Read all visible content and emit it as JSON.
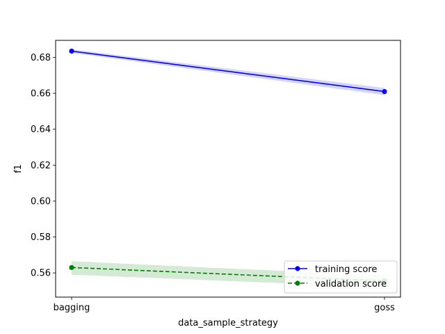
{
  "chart_data": {
    "type": "line",
    "categories": [
      "bagging",
      "goss"
    ],
    "xlabel": "data_sample_strategy",
    "ylabel": "f1",
    "ylim": [
      0.5465,
      0.6895
    ],
    "yticks": [
      0.56,
      0.58,
      0.6,
      0.62,
      0.64,
      0.66,
      0.68
    ],
    "ytick_labels": [
      "0.56",
      "0.58",
      "0.60",
      "0.62",
      "0.64",
      "0.66",
      "0.68"
    ],
    "grid": false,
    "legend_position": "lower-right",
    "series": [
      {
        "name": "training score",
        "values": [
          0.6835,
          0.661
        ],
        "band_lower": [
          0.6825,
          0.659
        ],
        "band_upper": [
          0.6845,
          0.663
        ],
        "color": "#0000ff",
        "band_color": "#0000ff",
        "line_style": "solid",
        "marker": "circle"
      },
      {
        "name": "validation score",
        "values": [
          0.563,
          0.5555
        ],
        "band_lower": [
          0.559,
          0.552
        ],
        "band_upper": [
          0.5665,
          0.5585
        ],
        "color": "#008000",
        "band_color": "#008000",
        "line_style": "dashed",
        "marker": "circle"
      }
    ]
  }
}
